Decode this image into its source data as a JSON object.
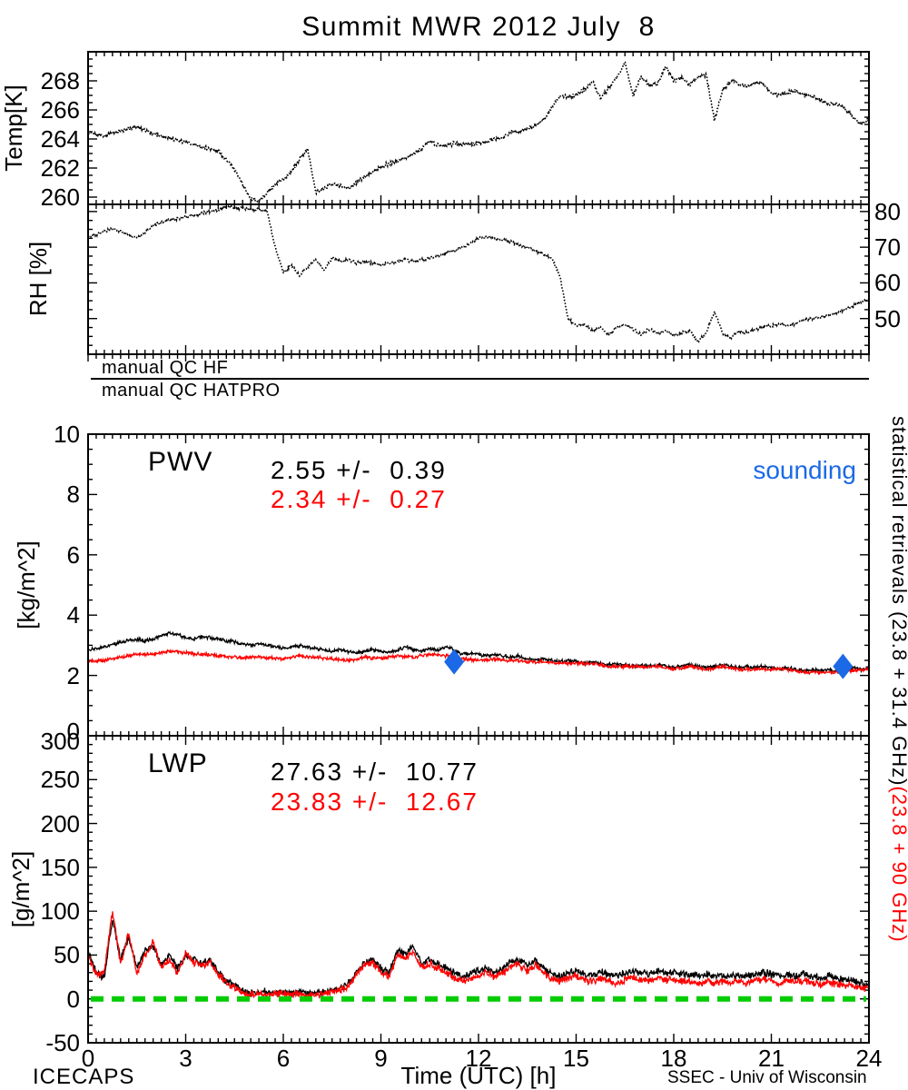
{
  "title": "Summit MWR 2012 July  8",
  "colors": {
    "black": "#000000",
    "red": "#ff0000",
    "blue": "#1b69e6",
    "green": "#00cc00"
  },
  "qc": {
    "hf_label": "manual QC HF",
    "hatpro_label": "manual QC HATPRO"
  },
  "annotations": {
    "pwv_label": "PWV",
    "pwv_black_stats": "2.55 +/-  0.39",
    "pwv_red_stats": "2.34 +/-  0.27",
    "sounding_label": "sounding",
    "lwp_label": "LWP",
    "lwp_black_stats": "27.63 +/-  10.77",
    "lwp_red_stats": "23.83 +/-  12.67"
  },
  "side_text": {
    "statistical": "statistical retrievals (23.8 + 31.4 GHz)",
    "red_suffix": "(23.8 + 90 GHz)"
  },
  "footer": {
    "left": "ICECAPS",
    "right": "SSEC - Univ of Wisconsin"
  },
  "xaxis": {
    "label": "Time (UTC) [h]",
    "ticks": [
      0,
      3,
      6,
      9,
      12,
      15,
      18,
      21,
      24
    ],
    "minor": 0.25,
    "xlim": [
      0,
      24
    ]
  },
  "chart_data": [
    {
      "id": "temp",
      "type": "line",
      "ylabel": "Temp[K]",
      "ylim": [
        259.5,
        270
      ],
      "yticks": [
        260,
        262,
        264,
        266,
        268
      ],
      "y_minor": 0.5,
      "yticks_side": "left",
      "x_start": 0,
      "x_step": 0.25,
      "xlim": [
        0,
        24
      ],
      "series": [
        {
          "name": "mwr-temperature",
          "color": "#000000",
          "style": "dotted",
          "values": [
            264.4,
            264.3,
            264.25,
            264.4,
            264.55,
            264.7,
            264.85,
            264.6,
            264.35,
            264.2,
            264.1,
            263.95,
            263.8,
            263.6,
            263.45,
            263.35,
            263.2,
            262.6,
            261.9,
            260.9,
            259.9,
            259.7,
            260.3,
            260.8,
            261.2,
            261.8,
            262.6,
            263.3,
            260.3,
            260.6,
            260.9,
            260.8,
            260.6,
            261.0,
            261.4,
            261.7,
            262.1,
            262.3,
            262.5,
            262.7,
            263.0,
            263.3,
            263.9,
            263.6,
            263.5,
            263.7,
            263.6,
            263.65,
            263.7,
            263.8,
            264.0,
            264.1,
            264.5,
            264.5,
            264.7,
            264.9,
            265.3,
            266.2,
            267.0,
            266.9,
            267.0,
            267.4,
            268.0,
            266.8,
            267.5,
            268.2,
            269.3,
            267.0,
            268.3,
            267.7,
            267.8,
            269.0,
            268.0,
            268.2,
            267.7,
            268.3,
            268.4,
            265.3,
            267.3,
            268.0,
            267.8,
            267.6,
            267.9,
            267.8,
            267.2,
            267.0,
            267.2,
            267.3,
            267.0,
            266.9,
            266.7,
            266.4,
            266.4,
            266.1,
            265.5,
            265.0,
            265.4
          ]
        }
      ]
    },
    {
      "id": "rh",
      "type": "line",
      "ylabel": "RH [%]",
      "ylim": [
        40,
        82
      ],
      "yticks": [
        50,
        60,
        70,
        80
      ],
      "y_minor": 2.5,
      "yticks_side": "right",
      "x_start": 0,
      "x_step": 0.25,
      "xlim": [
        0,
        24
      ],
      "series": [
        {
          "name": "mwr-relative-humidity",
          "color": "#000000",
          "style": "dotted",
          "values": [
            73,
            73.5,
            74.5,
            75,
            74.5,
            73.5,
            72.5,
            74,
            76,
            77,
            77.5,
            78,
            78.5,
            79,
            79.5,
            80,
            80.5,
            81.5,
            81.2,
            80.8,
            80.6,
            80.6,
            80.2,
            70,
            63,
            65,
            62,
            64.5,
            66.5,
            63.5,
            67,
            66,
            66.5,
            65.5,
            66,
            65.5,
            65,
            65.5,
            66,
            66.5,
            66,
            66.5,
            67,
            67.5,
            68.5,
            69,
            70,
            71,
            72.5,
            73,
            72.5,
            72,
            71.5,
            70.5,
            70,
            69,
            68,
            67,
            62,
            50,
            48,
            48.5,
            46.5,
            47.5,
            45.5,
            47.5,
            48.5,
            47,
            45.5,
            47,
            46,
            46.5,
            45.5,
            46,
            46.5,
            43.5,
            46,
            52,
            46,
            44.5,
            46.5,
            46,
            47,
            47.5,
            48,
            48.5,
            48,
            48.5,
            49.5,
            50,
            50.5,
            51,
            51.5,
            52.5,
            53.5,
            54.5,
            55.5
          ]
        }
      ]
    },
    {
      "id": "pwv",
      "type": "line",
      "ylabel": "[kg/m^2]",
      "ylim": [
        0,
        10
      ],
      "yticks": [
        0,
        2,
        4,
        6,
        8,
        10
      ],
      "y_minor": 0.5,
      "yticks_side": "left",
      "x_start": 0,
      "x_step": 0.25,
      "xlim": [
        0,
        24
      ],
      "stats": {
        "black": {
          "mean": 2.55,
          "std": 0.39
        },
        "red": {
          "mean": 2.34,
          "std": 0.27
        }
      },
      "markers": [
        {
          "name": "sounding",
          "shape": "diamond",
          "color": "#1b69e6",
          "points": [
            [
              11.25,
              2.45
            ],
            [
              23.2,
              2.3
            ]
          ]
        }
      ],
      "series": [
        {
          "name": "pwv-23.8+31.4GHz",
          "color": "#000000",
          "style": "solid",
          "values": [
            2.85,
            2.9,
            2.95,
            3.0,
            3.1,
            3.15,
            3.2,
            3.15,
            3.2,
            3.3,
            3.4,
            3.35,
            3.25,
            3.2,
            3.3,
            3.25,
            3.2,
            3.15,
            3.1,
            3.05,
            3.0,
            3.05,
            3.0,
            2.95,
            2.9,
            2.95,
            3.0,
            2.95,
            2.9,
            2.85,
            2.8,
            2.85,
            2.8,
            2.75,
            2.8,
            2.85,
            2.8,
            2.75,
            2.85,
            2.95,
            2.85,
            2.8,
            2.9,
            2.85,
            2.95,
            2.85,
            2.7,
            2.75,
            2.7,
            2.65,
            2.7,
            2.65,
            2.6,
            2.65,
            2.55,
            2.5,
            2.55,
            2.5,
            2.45,
            2.5,
            2.45,
            2.4,
            2.45,
            2.4,
            2.35,
            2.4,
            2.35,
            2.3,
            2.35,
            2.3,
            2.35,
            2.3,
            2.25,
            2.3,
            2.35,
            2.3,
            2.25,
            2.3,
            2.35,
            2.3,
            2.25,
            2.3,
            2.25,
            2.3,
            2.25,
            2.2,
            2.25,
            2.2,
            2.15,
            2.2,
            2.15,
            2.2,
            2.15,
            2.2,
            2.25,
            2.2,
            2.25
          ]
        },
        {
          "name": "pwv-23.8+90GHz",
          "color": "#ff0000",
          "style": "solid",
          "values": [
            2.45,
            2.48,
            2.5,
            2.55,
            2.6,
            2.65,
            2.7,
            2.7,
            2.7,
            2.75,
            2.8,
            2.78,
            2.75,
            2.72,
            2.7,
            2.68,
            2.65,
            2.62,
            2.6,
            2.6,
            2.6,
            2.6,
            2.6,
            2.58,
            2.55,
            2.6,
            2.65,
            2.62,
            2.6,
            2.58,
            2.55,
            2.52,
            2.5,
            2.55,
            2.6,
            2.58,
            2.55,
            2.6,
            2.65,
            2.62,
            2.6,
            2.65,
            2.7,
            2.68,
            2.65,
            2.6,
            2.55,
            2.52,
            2.5,
            2.52,
            2.55,
            2.52,
            2.5,
            2.48,
            2.45,
            2.45,
            2.45,
            2.42,
            2.4,
            2.4,
            2.4,
            2.4,
            2.4,
            2.35,
            2.3,
            2.3,
            2.3,
            2.3,
            2.3,
            2.3,
            2.3,
            2.25,
            2.2,
            2.25,
            2.3,
            2.25,
            2.2,
            2.25,
            2.3,
            2.25,
            2.2,
            2.2,
            2.2,
            2.2,
            2.2,
            2.2,
            2.2,
            2.15,
            2.1,
            2.1,
            2.1,
            2.1,
            2.1,
            2.12,
            2.15,
            2.18,
            2.2
          ]
        }
      ]
    },
    {
      "id": "lwp",
      "type": "line",
      "ylabel": "[g/m^2]",
      "ylim": [
        -50,
        300
      ],
      "yticks": [
        -50,
        0,
        50,
        100,
        150,
        200,
        250,
        300
      ],
      "y_minor": 10,
      "yticks_side": "left",
      "x_start": 0,
      "x_step": 0.25,
      "xlim": [
        0,
        24
      ],
      "stats": {
        "black": {
          "mean": 27.63,
          "std": 10.77
        },
        "red": {
          "mean": 23.83,
          "std": 12.67
        }
      },
      "ref_line": {
        "y": 0,
        "color": "#00cc00",
        "style": "dashed"
      },
      "series": [
        {
          "name": "lwp-23.8+31.4GHz",
          "color": "#000000",
          "style": "solid",
          "values": [
            55,
            30,
            25,
            90,
            45,
            70,
            35,
            55,
            60,
            40,
            50,
            35,
            50,
            45,
            40,
            45,
            30,
            20,
            15,
            10,
            6,
            8,
            8,
            7,
            8,
            7,
            8,
            6,
            7,
            8,
            10,
            12,
            18,
            30,
            40,
            45,
            35,
            30,
            55,
            50,
            60,
            40,
            45,
            40,
            35,
            30,
            25,
            28,
            32,
            35,
            30,
            35,
            42,
            45,
            38,
            45,
            35,
            28,
            26,
            30,
            32,
            28,
            26,
            30,
            28,
            26,
            30,
            32,
            30,
            28,
            32,
            30,
            30,
            28,
            28,
            26,
            28,
            26,
            28,
            26,
            28,
            26,
            28,
            30,
            28,
            26,
            28,
            26,
            28,
            26,
            24,
            26,
            24,
            22,
            20,
            18,
            16
          ]
        },
        {
          "name": "lwp-23.8+90GHz",
          "color": "#ff0000",
          "style": "solid",
          "values": [
            50,
            28,
            30,
            100,
            40,
            75,
            30,
            50,
            65,
            35,
            45,
            30,
            52,
            42,
            38,
            42,
            28,
            18,
            12,
            8,
            4,
            6,
            6,
            5,
            6,
            5,
            6,
            4,
            5,
            6,
            8,
            10,
            15,
            28,
            38,
            42,
            30,
            25,
            50,
            45,
            55,
            35,
            40,
            35,
            30,
            25,
            20,
            23,
            27,
            30,
            25,
            30,
            36,
            40,
            32,
            40,
            30,
            22,
            20,
            24,
            26,
            22,
            20,
            24,
            20,
            18,
            22,
            25,
            22,
            20,
            25,
            22,
            22,
            20,
            21,
            18,
            20,
            18,
            21,
            18,
            20,
            18,
            21,
            23,
            21,
            18,
            21,
            19,
            21,
            19,
            17,
            19,
            17,
            15,
            14,
            13,
            12
          ]
        }
      ]
    }
  ]
}
